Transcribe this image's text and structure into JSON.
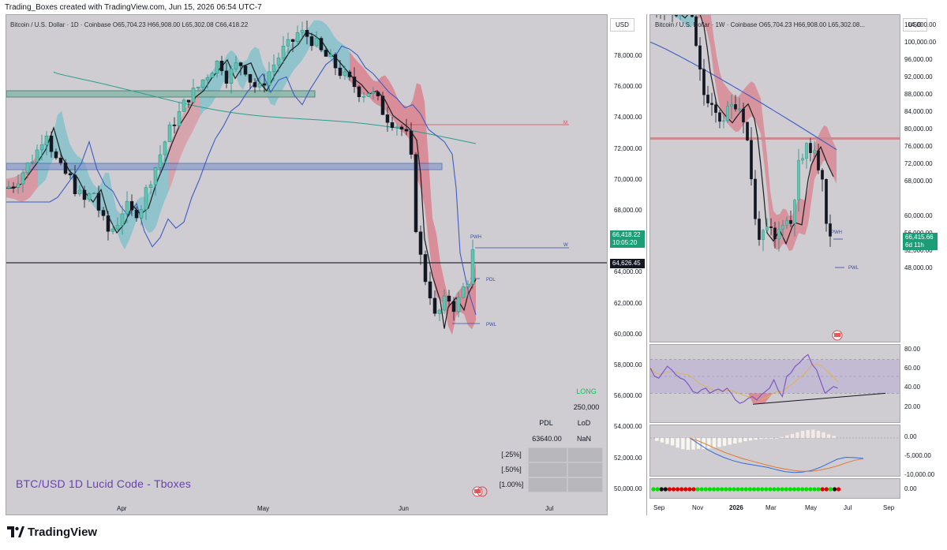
{
  "credit_line": "Trading_Boxes created with TradingView.com, Jun 15, 2026 06:54 UTC-7",
  "footer_brand": "TradingView",
  "colors": {
    "pane_bg": "#cfcdd1",
    "bull": "#26a69a",
    "bear": "#131722",
    "band_red": "#e05a6b",
    "band_teal": "#43b7c3",
    "blue_ma": "#3d5cc4",
    "green_ma": "#2a9d8f",
    "price_green": "#1b9e77",
    "rsi_line": "#7e57c2",
    "watermark": "#6a3fb8"
  },
  "left_chart": {
    "legend": {
      "symbol": "Bitcoin / U.S. Dollar · 1D · Coinbase",
      "open": "O65,704.23",
      "high": "H66,908.00",
      "low": "L65,302.08",
      "close": "C66,418.22"
    },
    "currency": "USD",
    "price_axis": [
      "78,000.00",
      "76,000.00",
      "74,000.00",
      "72,000.00",
      "70,000.00",
      "68,000.00",
      "64,000.00",
      "62,000.00",
      "60,000.00",
      "58,000.00",
      "56,000.00",
      "54,000.00",
      "52,000.00",
      "50,000.00"
    ],
    "current_price": "66,418.22",
    "countdown": "10:05:20",
    "level_price": "64,626.45",
    "time_axis": [
      "Apr",
      "May",
      "Jun",
      "Jul"
    ],
    "level_labels": {
      "m": "M",
      "w": "W",
      "pwh": "PWH",
      "pdl": "PDL",
      "pwl": "PWL"
    },
    "watermark": "BTC/USD 1D  Lucid Code - Tboxes",
    "table": {
      "side": "LONG",
      "size": "250,000",
      "headers": [
        "PDL",
        "LoD"
      ],
      "values": [
        "63640.00",
        "NaN"
      ],
      "rows": [
        "[.25%]",
        "[.50%]",
        "[1.00%]"
      ]
    }
  },
  "right_chart": {
    "legend": {
      "symbol": "Bitcoin / U.S. Dollar · 1W · Coinbase",
      "open": "O65,704.23",
      "high": "H66,908.00",
      "low": "L65,302.08..."
    },
    "currency": "USD",
    "price_axis": [
      "104,000.00",
      "100,000.00",
      "96,000.00",
      "92,000.00",
      "88,000.00",
      "84,000.00",
      "80,000.00",
      "76,000.00",
      "72,000.00",
      "68,000.00",
      "60,000.00",
      "56,000.00",
      "52,000.00",
      "48,000.00"
    ],
    "current_price": "66,415.66",
    "countdown": "6d 11h",
    "level_labels": {
      "pwh": "PWH",
      "pwl": "PWL"
    },
    "rsi_axis": [
      "80.00",
      "60.00",
      "40.00",
      "20.00"
    ],
    "macd_axis": [
      "0.00",
      "-5,000.00",
      "-10,000.00"
    ],
    "dots_axis": [
      "0.00"
    ],
    "time_axis": [
      "Sep",
      "Nov",
      "2026",
      "Mar",
      "May",
      "Jul",
      "Sep"
    ]
  }
}
